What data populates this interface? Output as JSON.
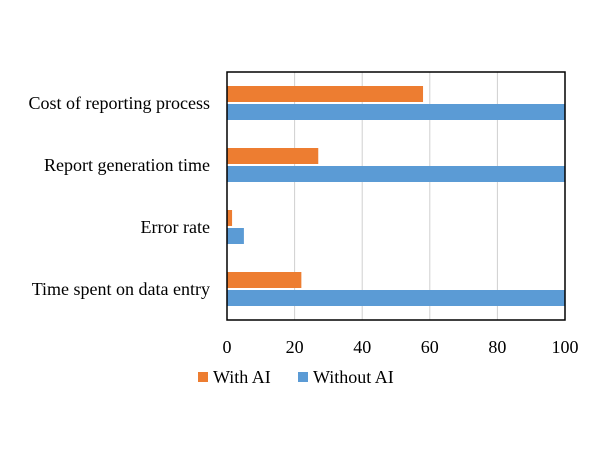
{
  "chart_data": {
    "type": "bar",
    "orientation": "horizontal",
    "categories": [
      "Cost of reporting process",
      "Report generation time",
      "Error rate",
      "Time spent on data entry"
    ],
    "series": [
      {
        "name": "With AI",
        "color": "#ED7D31",
        "values": [
          58,
          27,
          1.5,
          22
        ]
      },
      {
        "name": "Without AI",
        "color": "#5B9BD5",
        "values": [
          100,
          100,
          5,
          100
        ]
      }
    ],
    "xlim": [
      0,
      100
    ],
    "xticks": [
      0,
      20,
      40,
      60,
      80,
      100
    ],
    "grid": "vertical",
    "legend_position": "bottom",
    "title": "",
    "xlabel": "",
    "ylabel": ""
  }
}
